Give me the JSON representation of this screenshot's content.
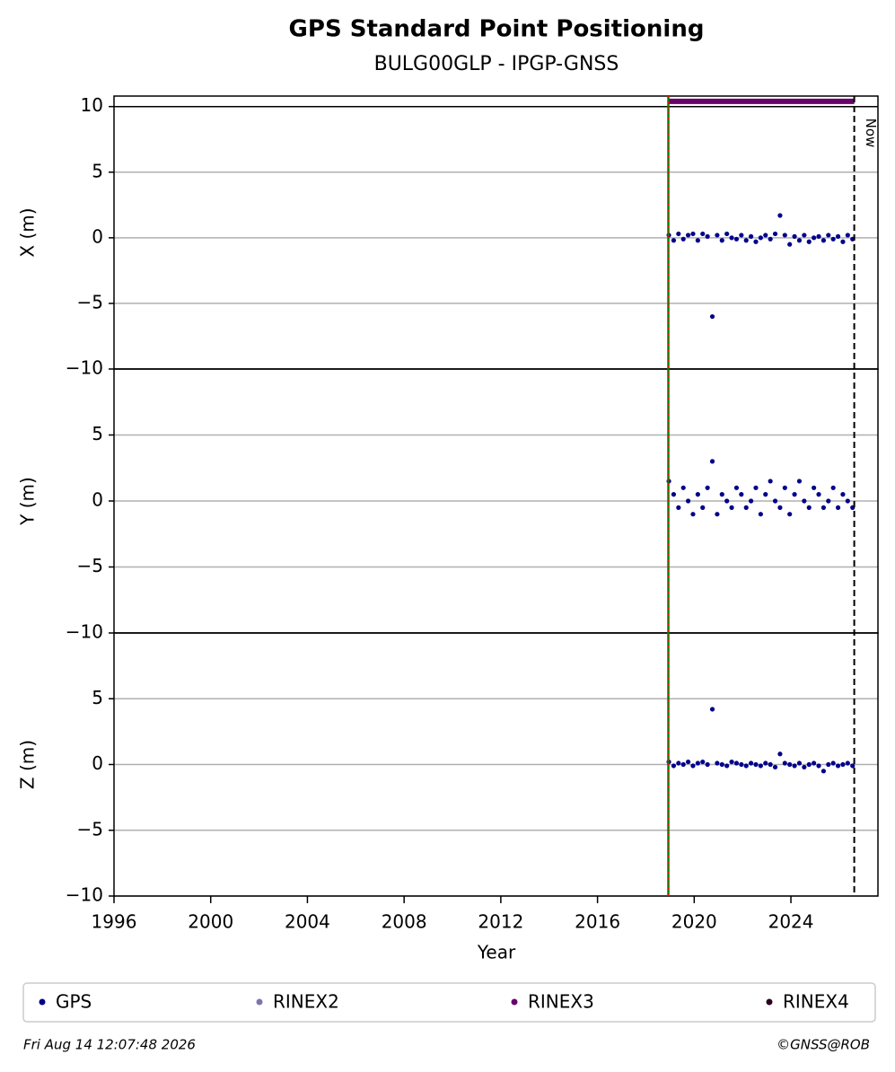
{
  "chart_data": {
    "type": "scatter",
    "title": "GPS Standard Point Positioning",
    "subtitle": "BULG00GLP - IPGP-GNSS",
    "xlabel": "Year",
    "xlim": [
      1996,
      2027.6
    ],
    "xticks": [
      1996,
      2000,
      2004,
      2008,
      2012,
      2016,
      2020,
      2024
    ],
    "start_line": 2018.93,
    "now": 2026.62,
    "now_label": "Now",
    "x": [
      2018.95,
      2019.15,
      2019.35,
      2019.55,
      2019.75,
      2019.95,
      2020.15,
      2020.35,
      2020.55,
      2020.75,
      2020.95,
      2021.15,
      2021.35,
      2021.55,
      2021.75,
      2021.95,
      2022.15,
      2022.35,
      2022.55,
      2022.75,
      2022.95,
      2023.15,
      2023.35,
      2023.55,
      2023.75,
      2023.95,
      2024.15,
      2024.35,
      2024.55,
      2024.75,
      2024.95,
      2025.15,
      2025.35,
      2025.55,
      2025.75,
      2025.95,
      2026.15,
      2026.35,
      2026.55
    ],
    "panels": [
      {
        "ylabel": "X (m)",
        "ylim": [
          -10,
          10.8
        ],
        "hline": 10,
        "yticks": [
          {
            "value": -10,
            "label": "−10"
          },
          {
            "value": -5,
            "label": "−5"
          },
          0,
          5,
          10
        ],
        "series": [
          {
            "color": "#00008b",
            "values": [
              0.2,
              -0.2,
              0.3,
              -0.1,
              0.2,
              0.3,
              -0.2,
              0.3,
              0.1,
              -6,
              0.2,
              -0.2,
              0.3,
              0,
              -0.1,
              0.2,
              -0.2,
              0.1,
              -0.3,
              0,
              0.2,
              -0.1,
              0.3,
              1.7,
              0.2,
              -0.5,
              0.1,
              -0.2,
              0.2,
              -0.3,
              0,
              0.1,
              -0.2,
              0.2,
              -0.1,
              0.1,
              -0.3,
              0.2,
              -0.1
            ]
          }
        ],
        "rinex3_track": {
          "color": "#6a006a",
          "x": [
            2018.93,
            2026.62
          ],
          "values": [
            10.4,
            10.4
          ]
        }
      },
      {
        "ylabel": "Y (m)",
        "ylim": [
          -10,
          10
        ],
        "yticks": [
          {
            "value": -10,
            "label": "−10"
          },
          {
            "value": -5,
            "label": "−5"
          },
          0,
          5
        ],
        "series": [
          {
            "color": "#00008b",
            "values": [
              1.5,
              0.5,
              -0.5,
              1,
              0,
              -1,
              0.5,
              -0.5,
              1,
              3,
              -1,
              0.5,
              0,
              -0.5,
              1,
              0.5,
              -0.5,
              0,
              1,
              -1,
              0.5,
              1.5,
              0,
              -0.5,
              1,
              -1,
              0.5,
              1.5,
              0,
              -0.5,
              1,
              0.5,
              -0.5,
              0,
              1,
              -0.5,
              0.5,
              0,
              -0.5
            ]
          }
        ]
      },
      {
        "ylabel": "Z (m)",
        "ylim": [
          -10,
          10
        ],
        "yticks": [
          {
            "value": -10,
            "label": "−10"
          },
          {
            "value": -5,
            "label": "−5"
          },
          0,
          5
        ],
        "series": [
          {
            "color": "#00008b",
            "values": [
              0.2,
              -0.1,
              0.1,
              0,
              0.2,
              -0.1,
              0.1,
              0.2,
              0,
              4.2,
              0.1,
              0,
              -0.1,
              0.2,
              0.1,
              0,
              -0.1,
              0.1,
              0,
              -0.1,
              0.1,
              0,
              -0.2,
              0.8,
              0.1,
              0,
              -0.1,
              0.1,
              -0.2,
              0,
              0.1,
              -0.1,
              -0.5,
              0,
              0.1,
              -0.1,
              0,
              0.1,
              -0.1
            ]
          }
        ]
      }
    ],
    "legend": [
      {
        "name": "GPS",
        "color": "#00008b"
      },
      {
        "name": "RINEX2",
        "color": "#8073b0"
      },
      {
        "name": "RINEX3",
        "color": "#6a006a"
      },
      {
        "name": "RINEX4",
        "color": "#2a0020"
      }
    ],
    "timestamp": "Fri Aug 14 12:07:48 2026",
    "credit": "©GNSS@ROB"
  }
}
